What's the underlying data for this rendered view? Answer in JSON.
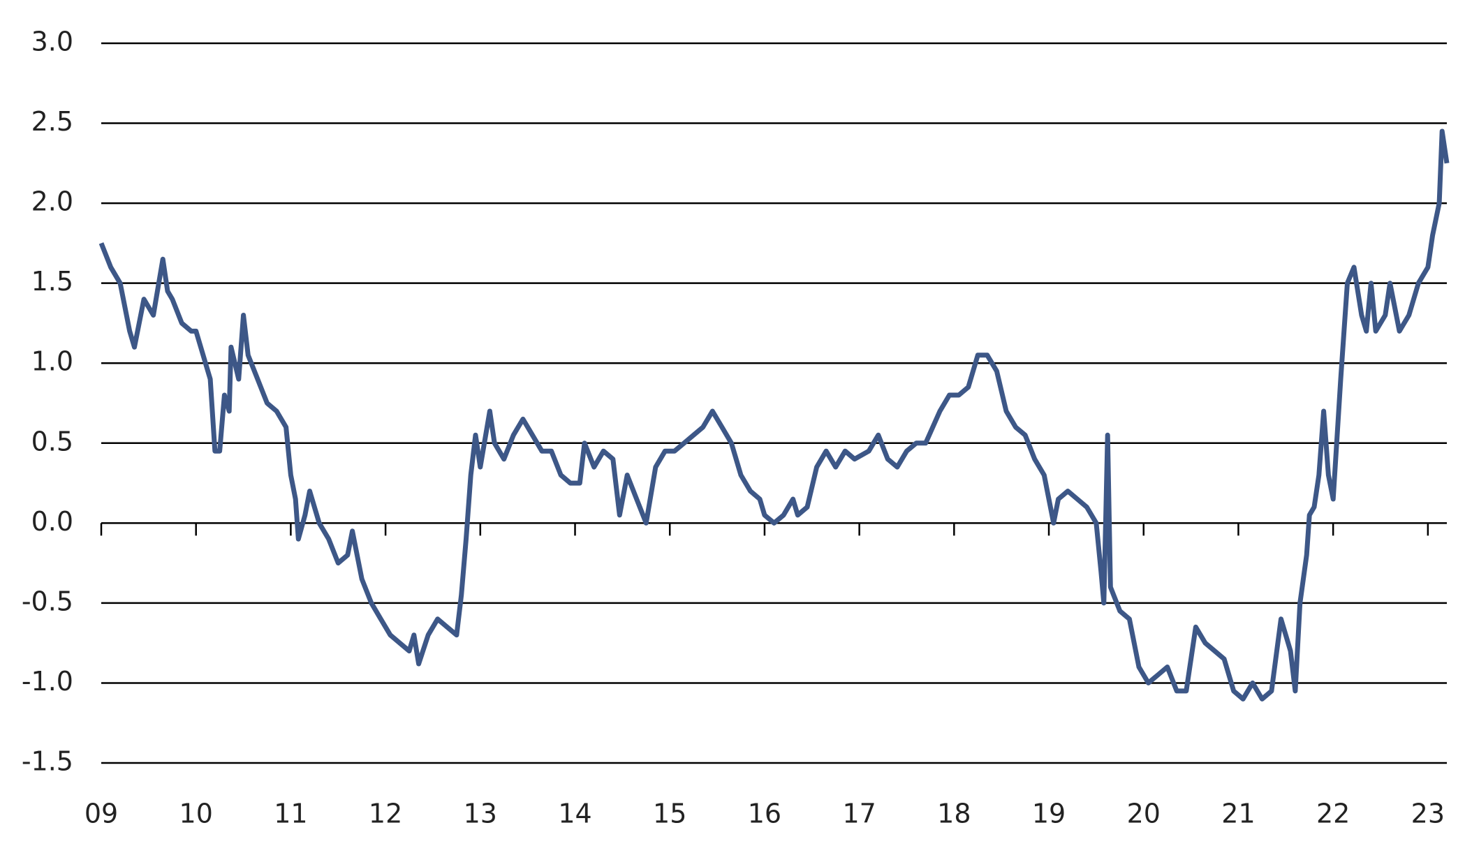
{
  "chart_data": {
    "type": "line",
    "x": [
      2009.0,
      2009.1,
      2009.2,
      2009.3,
      2009.35,
      2009.45,
      2009.55,
      2009.65,
      2009.7,
      2009.75,
      2009.85,
      2009.95,
      2010.0,
      2010.1,
      2010.15,
      2010.2,
      2010.25,
      2010.3,
      2010.35,
      2010.37,
      2010.45,
      2010.5,
      2010.55,
      2010.65,
      2010.75,
      2010.85,
      2010.95,
      2011.0,
      2011.05,
      2011.08,
      2011.15,
      2011.2,
      2011.3,
      2011.4,
      2011.5,
      2011.6,
      2011.65,
      2011.75,
      2011.85,
      2011.95,
      2012.05,
      2012.15,
      2012.25,
      2012.3,
      2012.35,
      2012.45,
      2012.55,
      2012.65,
      2012.75,
      2012.8,
      2012.85,
      2012.9,
      2012.95,
      2013.0,
      2013.1,
      2013.15,
      2013.25,
      2013.35,
      2013.45,
      2013.55,
      2013.65,
      2013.75,
      2013.85,
      2013.95,
      2014.05,
      2014.1,
      2014.2,
      2014.3,
      2014.4,
      2014.47,
      2014.55,
      2014.65,
      2014.75,
      2014.85,
      2014.95,
      2015.05,
      2015.15,
      2015.25,
      2015.35,
      2015.45,
      2015.55,
      2015.65,
      2015.75,
      2015.85,
      2015.95,
      2016.0,
      2016.1,
      2016.2,
      2016.3,
      2016.35,
      2016.45,
      2016.55,
      2016.65,
      2016.75,
      2016.85,
      2016.95,
      2017.1,
      2017.2,
      2017.3,
      2017.4,
      2017.5,
      2017.6,
      2017.7,
      2017.85,
      2017.95,
      2018.05,
      2018.15,
      2018.25,
      2018.35,
      2018.45,
      2018.55,
      2018.65,
      2018.75,
      2018.85,
      2018.95,
      2019.05,
      2019.1,
      2019.2,
      2019.3,
      2019.4,
      2019.5,
      2019.55,
      2019.58,
      2019.62,
      2019.65,
      2019.75,
      2019.85,
      2019.95,
      2020.05,
      2020.15,
      2020.25,
      2020.35,
      2020.45,
      2020.55,
      2020.65,
      2020.75,
      2020.85,
      2020.95,
      2021.05,
      2021.15,
      2021.25,
      2021.35,
      2021.45,
      2021.55,
      2021.6,
      2021.65,
      2021.72,
      2021.75,
      2021.8,
      2021.85,
      2021.9,
      2021.95,
      2022.0,
      2022.08,
      2022.15,
      2022.22,
      2022.3,
      2022.35,
      2022.4,
      2022.45,
      2022.55,
      2022.6,
      2022.7,
      2022.8,
      2022.9,
      2023.0,
      2023.05,
      2023.12,
      2023.15,
      2023.2
    ],
    "series": [
      {
        "color": "#3d5787",
        "values": [
          1.75,
          1.6,
          1.5,
          1.2,
          1.1,
          1.4,
          1.3,
          1.65,
          1.45,
          1.4,
          1.25,
          1.2,
          1.2,
          1.0,
          0.9,
          0.45,
          0.45,
          0.8,
          0.7,
          1.1,
          0.9,
          1.3,
          1.05,
          0.9,
          0.75,
          0.7,
          0.6,
          0.3,
          0.15,
          -0.1,
          0.05,
          0.2,
          0.0,
          -0.1,
          -0.25,
          -0.2,
          -0.05,
          -0.35,
          -0.5,
          -0.6,
          -0.7,
          -0.75,
          -0.8,
          -0.7,
          -0.88,
          -0.7,
          -0.6,
          -0.65,
          -0.7,
          -0.45,
          -0.1,
          0.3,
          0.55,
          0.35,
          0.7,
          0.5,
          0.4,
          0.55,
          0.65,
          0.55,
          0.45,
          0.45,
          0.3,
          0.25,
          0.25,
          0.5,
          0.35,
          0.45,
          0.4,
          0.05,
          0.3,
          0.15,
          0.0,
          0.35,
          0.45,
          0.45,
          0.5,
          0.55,
          0.6,
          0.7,
          0.6,
          0.5,
          0.3,
          0.2,
          0.15,
          0.05,
          0.0,
          0.05,
          0.15,
          0.05,
          0.1,
          0.35,
          0.45,
          0.35,
          0.45,
          0.4,
          0.45,
          0.55,
          0.4,
          0.35,
          0.45,
          0.5,
          0.5,
          0.7,
          0.8,
          0.8,
          0.85,
          1.05,
          1.05,
          0.95,
          0.7,
          0.6,
          0.55,
          0.4,
          0.3,
          0.0,
          0.15,
          0.2,
          0.15,
          0.1,
          0.0,
          -0.3,
          -0.5,
          0.55,
          -0.4,
          -0.55,
          -0.6,
          -0.9,
          -1.0,
          -0.95,
          -0.9,
          -1.05,
          -1.05,
          -0.65,
          -0.75,
          -0.8,
          -0.85,
          -1.05,
          -1.1,
          -1.0,
          -1.1,
          -1.05,
          -0.6,
          -0.8,
          -1.05,
          -0.5,
          -0.2,
          0.05,
          0.1,
          0.3,
          0.7,
          0.3,
          0.15,
          0.9,
          1.5,
          1.6,
          1.3,
          1.2,
          1.5,
          1.2,
          1.3,
          1.5,
          1.2,
          1.3,
          1.5,
          1.6,
          1.8,
          2.0,
          2.45,
          2.25
        ]
      }
    ],
    "xlim": [
      2009,
      2023.2
    ],
    "xticks": [
      {
        "value": 2009,
        "label": "09"
      },
      {
        "value": 2010,
        "label": "10"
      },
      {
        "value": 2011,
        "label": "11"
      },
      {
        "value": 2012,
        "label": "12"
      },
      {
        "value": 2013,
        "label": "13"
      },
      {
        "value": 2014,
        "label": "14"
      },
      {
        "value": 2015,
        "label": "15"
      },
      {
        "value": 2016,
        "label": "16"
      },
      {
        "value": 2017,
        "label": "17"
      },
      {
        "value": 2018,
        "label": "18"
      },
      {
        "value": 2019,
        "label": "19"
      },
      {
        "value": 2020,
        "label": "20"
      },
      {
        "value": 2021,
        "label": "21"
      },
      {
        "value": 2022,
        "label": "22"
      },
      {
        "value": 2023,
        "label": "23"
      }
    ],
    "ylim": [
      -1.5,
      3
    ],
    "yticks": [
      -1.5,
      {
        "value": -1,
        "label": "-1.0"
      },
      -0.5,
      {
        "value": 0,
        "label": "0.0"
      },
      0.5,
      {
        "value": 1,
        "label": "1.0"
      },
      1.5,
      {
        "value": 2,
        "label": "2.0"
      },
      2.5,
      {
        "value": 3,
        "label": "3.0"
      }
    ],
    "grid": true
  }
}
